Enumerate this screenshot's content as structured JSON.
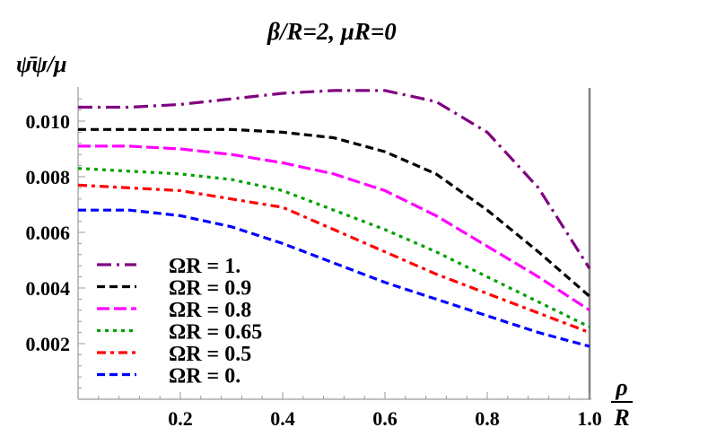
{
  "chart_data": {
    "type": "line",
    "title": "β/R=2, μR=0",
    "ylabel": "ψ̄ψ/μ",
    "xlabel_num": "ρ",
    "xlabel_den": "R",
    "xlim": [
      0,
      1.0
    ],
    "ylim": [
      0,
      0.0112
    ],
    "x_ticks": [
      "0.2",
      "0.4",
      "0.6",
      "0.8",
      "1.0"
    ],
    "y_ticks": [
      "0.002",
      "0.004",
      "0.006",
      "0.008",
      "0.010"
    ],
    "grid": false,
    "reference_line_x": 1.0,
    "legend_position": "bottom-left",
    "x": [
      0,
      0.1,
      0.2,
      0.3,
      0.4,
      0.5,
      0.6,
      0.7,
      0.8,
      0.9,
      1.0
    ],
    "series": [
      {
        "name": "ΩR = 1.",
        "color": "#800080",
        "dash": "dashdot",
        "values": [
          0.0105,
          0.0105,
          0.0106,
          0.0108,
          0.011,
          0.0111,
          0.0111,
          0.0107,
          0.0096,
          0.0076,
          0.0047
        ]
      },
      {
        "name": "ΩR = 0.9",
        "color": "#000000",
        "dash": "dashed",
        "values": [
          0.0097,
          0.0097,
          0.0097,
          0.0097,
          0.0096,
          0.0094,
          0.0089,
          0.0081,
          0.0068,
          0.0053,
          0.0037
        ]
      },
      {
        "name": "ΩR = 0.8",
        "color": "#ff00ff",
        "dash": "longdash",
        "values": [
          0.0091,
          0.0091,
          0.009,
          0.0088,
          0.0085,
          0.0081,
          0.0075,
          0.0066,
          0.0055,
          0.0044,
          0.0032
        ]
      },
      {
        "name": "ΩR = 0.65",
        "color": "#00a000",
        "dash": "dotted",
        "values": [
          0.0083,
          0.0082,
          0.0081,
          0.0079,
          0.0075,
          0.0068,
          0.0061,
          0.0053,
          0.0044,
          0.0035,
          0.0026
        ]
      },
      {
        "name": "ΩR = 0.5",
        "color": "#ff0000",
        "dash": "dashdot2",
        "values": [
          0.0077,
          0.0076,
          0.0075,
          0.0072,
          0.0069,
          0.0061,
          0.0053,
          0.0045,
          0.0038,
          0.0031,
          0.0024
        ]
      },
      {
        "name": "ΩR = 0.",
        "color": "#0000ff",
        "dash": "dashed",
        "values": [
          0.0068,
          0.0068,
          0.0066,
          0.0062,
          0.0056,
          0.0049,
          0.0042,
          0.0036,
          0.003,
          0.0024,
          0.0019
        ]
      }
    ]
  }
}
